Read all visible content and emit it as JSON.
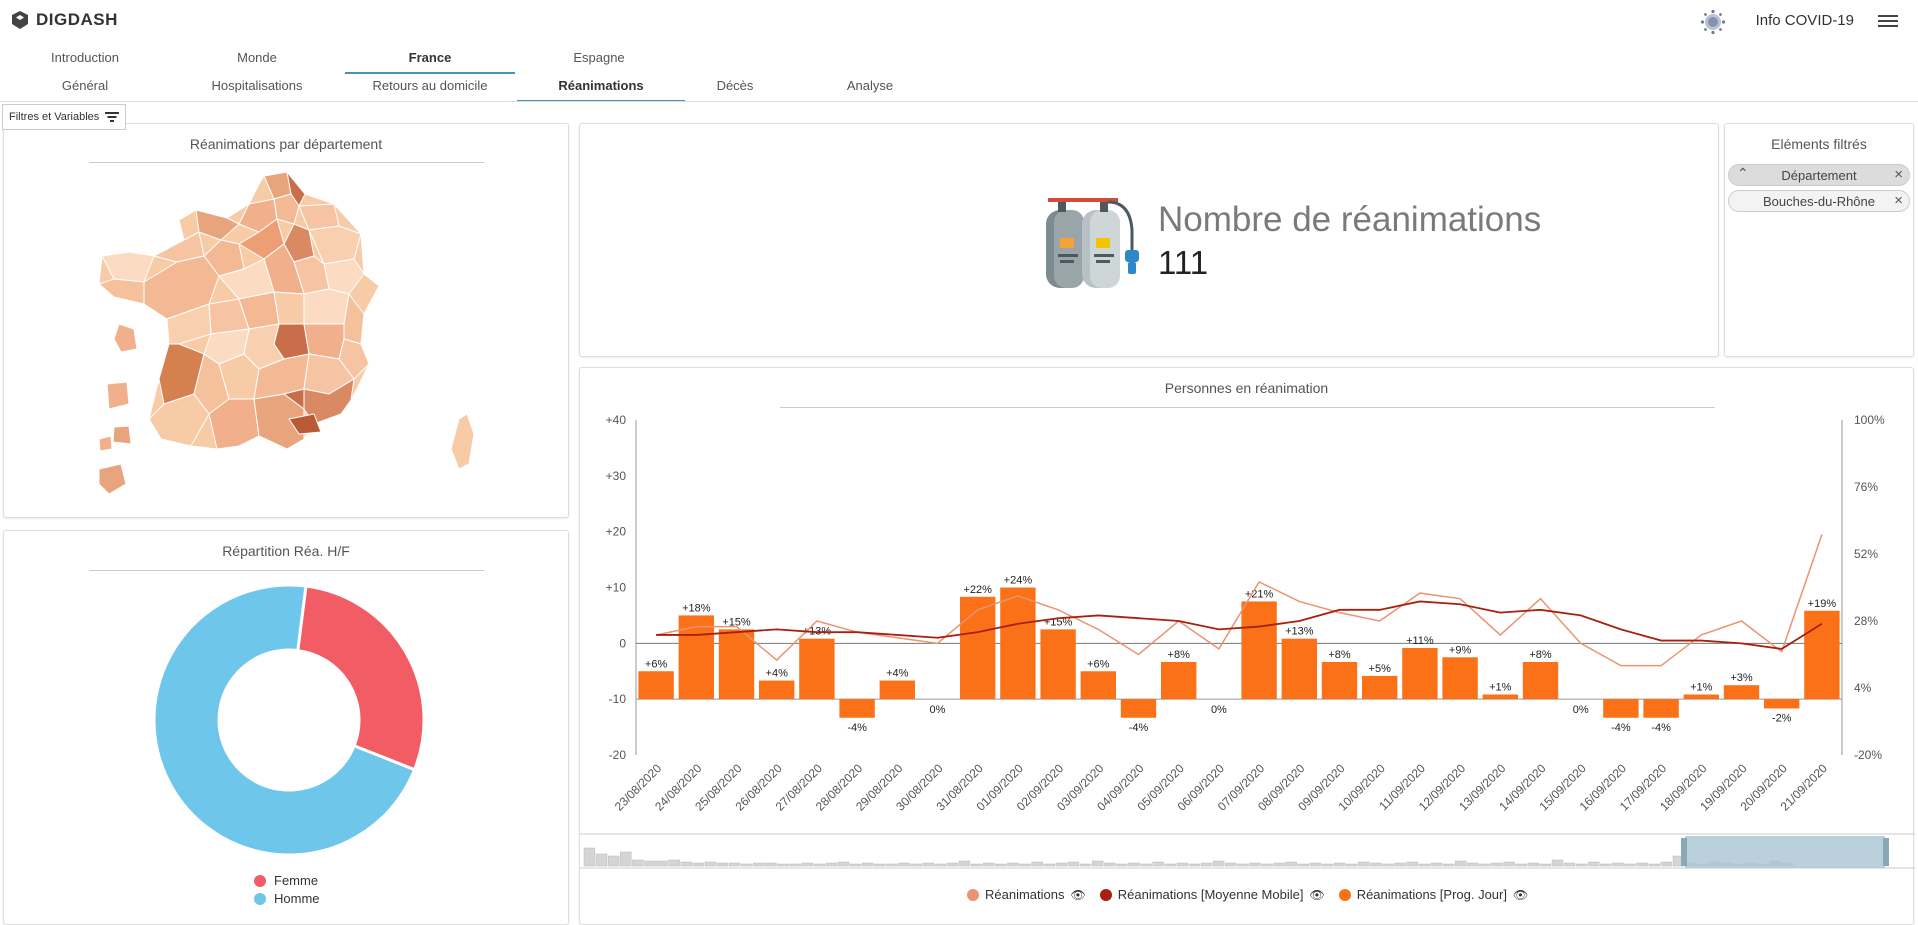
{
  "header": {
    "logo_text": "DIGDASH",
    "app_title": "Info COVID-19",
    "menu_icon": "hamburger-icon",
    "logo_icon": "digdash-logo-icon",
    "virus_icon": "virus-icon"
  },
  "tabs_primary": [
    {
      "label": "Introduction",
      "active": false
    },
    {
      "label": "Monde",
      "active": false
    },
    {
      "label": "France",
      "active": true
    },
    {
      "label": "Espagne",
      "active": false
    }
  ],
  "tabs_secondary": [
    {
      "label": "Général",
      "active": false
    },
    {
      "label": "Hospitalisations",
      "active": false
    },
    {
      "label": "Retours au domicile",
      "active": false
    },
    {
      "label": "Réanimations",
      "active": true
    },
    {
      "label": "Décès",
      "active": false
    },
    {
      "label": "Analyse",
      "active": false
    }
  ],
  "filters_button": "Filtres et Variables",
  "map_panel": {
    "title": "Réanimations par département"
  },
  "donut_panel": {
    "title": "Répartition Réa. H/F",
    "legend": [
      {
        "label": "Femme",
        "color": "#f25c65"
      },
      {
        "label": "Homme",
        "color": "#6ec6ea"
      }
    ]
  },
  "kpi_panel": {
    "label": "Nombre de réanimations",
    "value": "111",
    "icon": "oxygen-tanks-icon"
  },
  "filtered_panel": {
    "title": "Eléments filtrés",
    "chips": [
      {
        "label": "Département",
        "caret": true
      },
      {
        "label": "Bouches-du-Rhône",
        "caret": false
      }
    ]
  },
  "line_chart_panel": {
    "title": "Personnes en réanimation",
    "legend": [
      {
        "label": "Réanimations",
        "color": "#eb9373"
      },
      {
        "label": "Réanimations [Moyenne Mobile]",
        "color": "#a8210f"
      },
      {
        "label": "Réanimations [Prog. Jour]",
        "color": "#fa7117"
      }
    ]
  },
  "chart_data": [
    {
      "type": "pie",
      "title": "Répartition Réa. H/F",
      "categories": [
        "Femme",
        "Homme"
      ],
      "values": [
        29,
        71
      ],
      "colors": [
        "#f25c65",
        "#6ec6ea"
      ],
      "donut": true
    },
    {
      "type": "bar",
      "title": "Personnes en réanimation",
      "categories": [
        "23/08/2020",
        "24/08/2020",
        "25/08/2020",
        "26/08/2020",
        "27/08/2020",
        "28/08/2020",
        "29/08/2020",
        "30/08/2020",
        "31/08/2020",
        "01/09/2020",
        "02/09/2020",
        "03/09/2020",
        "04/09/2020",
        "05/09/2020",
        "06/09/2020",
        "07/09/2020",
        "08/09/2020",
        "09/09/2020",
        "10/09/2020",
        "11/09/2020",
        "12/09/2020",
        "13/09/2020",
        "14/09/2020",
        "15/09/2020",
        "16/09/2020",
        "17/09/2020",
        "18/09/2020",
        "19/09/2020",
        "20/09/2020",
        "21/09/2020"
      ],
      "y_left_ticks": [
        "+40",
        "+30",
        "+20",
        "+10",
        "0",
        "-10",
        "-20"
      ],
      "y_right_ticks": [
        "100%",
        "76%",
        "52%",
        "28%",
        "4%",
        "-20%"
      ],
      "ylim_left": [
        -20,
        40
      ],
      "ylim_right": [
        -20,
        100
      ],
      "series": [
        {
          "name": "Réanimations",
          "kind": "line",
          "color": "#eb9373",
          "values": [
            1.5,
            3,
            3,
            -3,
            4,
            2,
            1,
            0,
            6,
            8.5,
            6,
            2.5,
            -2,
            4,
            -1,
            11,
            7.5,
            5.5,
            4,
            9,
            8,
            1.5,
            8,
            0,
            -4,
            -4,
            1.5,
            4,
            -1.5,
            19.5
          ]
        },
        {
          "name": "Réanimations [Moyenne Mobile]",
          "kind": "line",
          "color": "#a8210f",
          "values": [
            1.5,
            1.5,
            2,
            2.5,
            2,
            2,
            1.5,
            1,
            2,
            3.5,
            4.5,
            5,
            4.5,
            4,
            2.5,
            3,
            4,
            6,
            6,
            7.5,
            7,
            5.5,
            6,
            5,
            2.5,
            0.5,
            0.5,
            0,
            -1,
            3.5
          ]
        },
        {
          "name": "Réanimations [Prog. Jour]",
          "kind": "bar",
          "color": "#fa7117",
          "values": [
            6,
            18,
            15,
            4,
            13,
            -4,
            4,
            0,
            22,
            24,
            15,
            6,
            -4,
            8,
            0,
            21,
            13,
            8,
            5,
            11,
            9,
            1,
            8,
            0,
            -4,
            -4,
            1,
            3,
            -2,
            19
          ],
          "labels": [
            "+6%",
            "+18%",
            "+15%",
            "+4%",
            "+13%",
            "-4%",
            "+4%",
            "0%",
            "+22%",
            "+24%",
            "+15%",
            "+6%",
            "-4%",
            "+8%",
            "0%",
            "+21%",
            "+13%",
            "+8%",
            "+5%",
            "+11%",
            "+9%",
            "+1%",
            "+8%",
            "0%",
            "-4%",
            "-4%",
            "+1%",
            "+3%",
            "-2%",
            "+19%"
          ]
        }
      ]
    }
  ]
}
